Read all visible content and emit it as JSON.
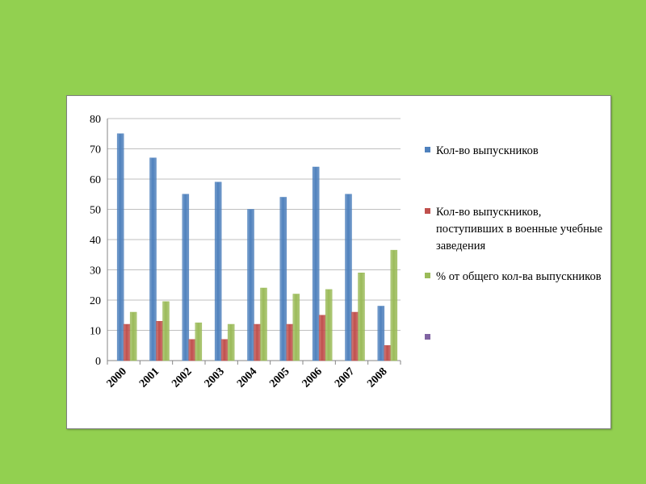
{
  "chart_data": {
    "type": "bar",
    "categories": [
      "2000",
      "2001",
      "2002",
      "2003",
      "2004",
      "2005",
      "2006",
      "2007",
      "2008"
    ],
    "series": [
      {
        "name": "Кол-во выпускников",
        "color": "#4f81bd",
        "values": [
          75,
          67,
          55,
          59,
          50,
          54,
          64,
          55,
          18
        ]
      },
      {
        "name": "Кол-во выпускников, поступивших в военные учебные заведения",
        "color": "#c0504d",
        "values": [
          12,
          13,
          7,
          7,
          12,
          12,
          15,
          16,
          5
        ]
      },
      {
        "name": "% от общего кол-ва выпускников",
        "color": "#9bbb59",
        "values": [
          16,
          19.5,
          12.5,
          12,
          24,
          22,
          23.5,
          29,
          36.5
        ]
      }
    ],
    "extra_legend": {
      "name": "",
      "color": "#8064a2"
    },
    "ylim": [
      0,
      80
    ],
    "yticks": [
      0,
      10,
      20,
      30,
      40,
      50,
      60,
      70,
      80
    ],
    "grid": true,
    "legend_position": "right",
    "title": "",
    "xlabel": "",
    "ylabel": ""
  }
}
